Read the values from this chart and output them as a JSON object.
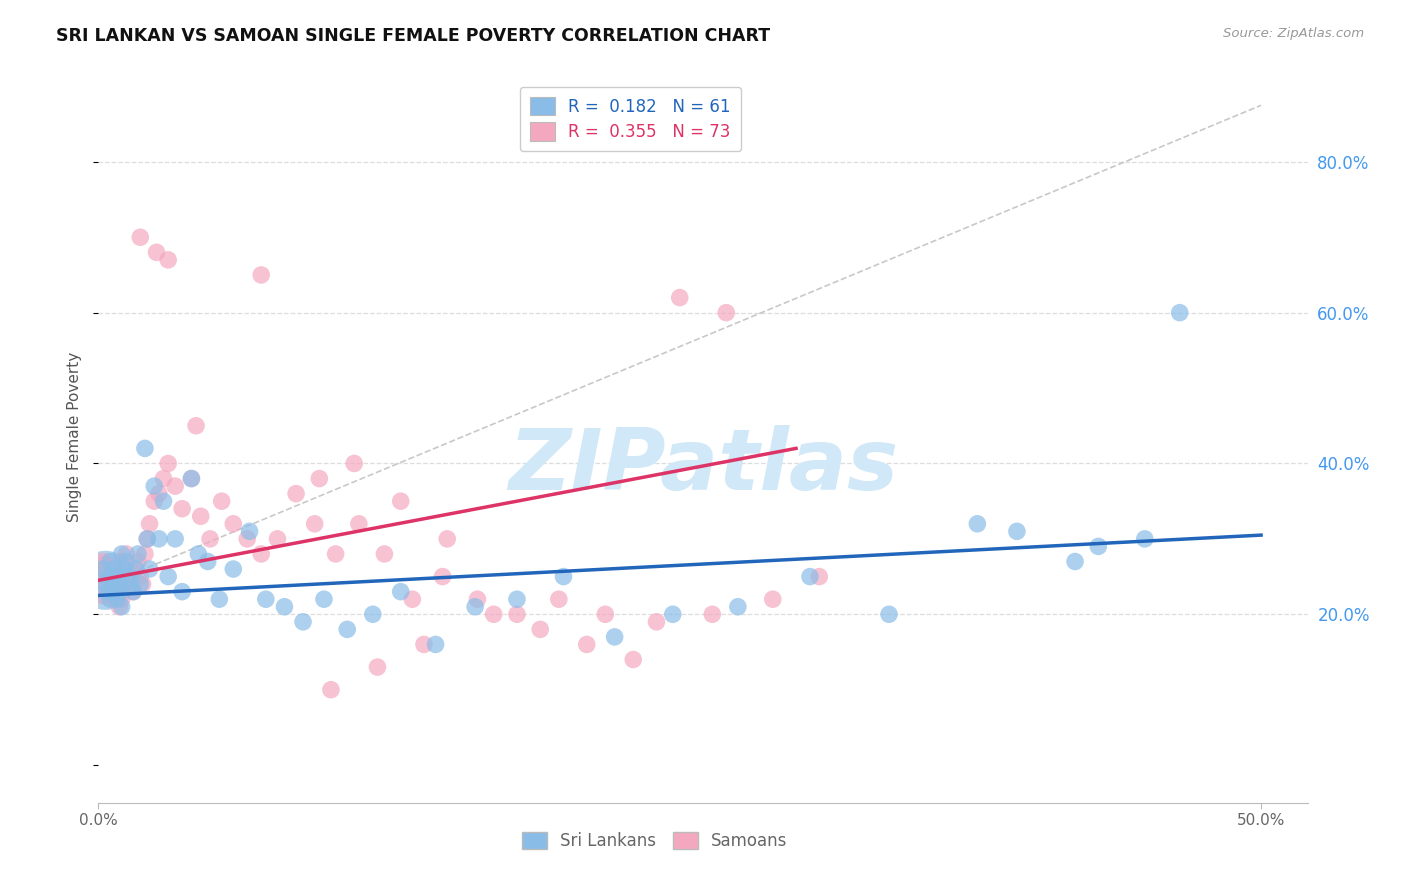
{
  "title": "SRI LANKAN VS SAMOAN SINGLE FEMALE POVERTY CORRELATION CHART",
  "source": "Source: ZipAtlas.com",
  "ylabel": "Single Female Poverty",
  "xlim": [
    0.0,
    0.52
  ],
  "ylim": [
    -0.05,
    0.92
  ],
  "xtick_vals": [
    0.0,
    0.5
  ],
  "xtick_labels": [
    "0.0%",
    "50.0%"
  ],
  "ytick_vals": [
    0.2,
    0.4,
    0.6,
    0.8
  ],
  "ytick_labels": [
    "20.0%",
    "40.0%",
    "60.0%",
    "80.0%"
  ],
  "sri_lankan_color": "#89bde8",
  "samoan_color": "#f4a8c0",
  "sri_lankan_line_color": "#2266bb",
  "samoan_line_color": "#dd3366",
  "dashed_line_color": "#cccccc",
  "grid_color": "#dddddd",
  "background_color": "#ffffff",
  "watermark_text": "ZIPatlas",
  "watermark_color": "#d0e8f8",
  "sri_lankans_label": "Sri Lankans",
  "samoans_label": "Samoans",
  "legend_r_blue": "R =  0.182",
  "legend_n_blue": "N = 61",
  "legend_r_pink": "R =  0.355",
  "legend_n_pink": "N = 73",
  "sri_lankan_trend_x": [
    0.0,
    0.5
  ],
  "sri_lankan_trend_y": [
    0.225,
    0.305
  ],
  "samoan_trend_x": [
    0.0,
    0.3
  ],
  "samoan_trend_y": [
    0.245,
    0.42
  ],
  "dashed_trend_x": [
    0.0,
    0.5
  ],
  "dashed_trend_y": [
    0.235,
    0.875
  ],
  "sri_lankan_x": [
    0.002,
    0.003,
    0.004,
    0.004,
    0.005,
    0.005,
    0.006,
    0.006,
    0.007,
    0.007,
    0.008,
    0.008,
    0.009,
    0.009,
    0.01,
    0.01,
    0.011,
    0.012,
    0.013,
    0.014,
    0.015,
    0.016,
    0.017,
    0.018,
    0.02,
    0.021,
    0.022,
    0.024,
    0.026,
    0.028,
    0.03,
    0.033,
    0.036,
    0.04,
    0.043,
    0.047,
    0.052,
    0.058,
    0.065,
    0.072,
    0.08,
    0.088,
    0.097,
    0.107,
    0.118,
    0.13,
    0.145,
    0.162,
    0.18,
    0.2,
    0.222,
    0.247,
    0.275,
    0.306,
    0.34,
    0.378,
    0.42,
    0.465,
    0.395,
    0.43,
    0.45
  ],
  "sri_lankan_y": [
    0.26,
    0.24,
    0.25,
    0.23,
    0.27,
    0.22,
    0.25,
    0.24,
    0.26,
    0.23,
    0.25,
    0.22,
    0.24,
    0.23,
    0.28,
    0.21,
    0.26,
    0.27,
    0.25,
    0.24,
    0.23,
    0.26,
    0.28,
    0.24,
    0.42,
    0.3,
    0.26,
    0.37,
    0.3,
    0.35,
    0.25,
    0.3,
    0.23,
    0.38,
    0.28,
    0.27,
    0.22,
    0.26,
    0.31,
    0.22,
    0.21,
    0.19,
    0.22,
    0.18,
    0.2,
    0.23,
    0.16,
    0.21,
    0.22,
    0.25,
    0.17,
    0.2,
    0.21,
    0.25,
    0.2,
    0.32,
    0.27,
    0.6,
    0.31,
    0.29,
    0.3
  ],
  "samoan_x": [
    0.002,
    0.003,
    0.004,
    0.005,
    0.005,
    0.006,
    0.007,
    0.007,
    0.008,
    0.008,
    0.009,
    0.009,
    0.01,
    0.01,
    0.011,
    0.012,
    0.013,
    0.014,
    0.015,
    0.016,
    0.017,
    0.018,
    0.019,
    0.02,
    0.021,
    0.022,
    0.024,
    0.026,
    0.028,
    0.03,
    0.033,
    0.036,
    0.04,
    0.044,
    0.048,
    0.053,
    0.058,
    0.064,
    0.07,
    0.077,
    0.085,
    0.093,
    0.102,
    0.112,
    0.123,
    0.135,
    0.148,
    0.163,
    0.18,
    0.198,
    0.218,
    0.24,
    0.264,
    0.042,
    0.095,
    0.11,
    0.13,
    0.15,
    0.17,
    0.19,
    0.21,
    0.23,
    0.25,
    0.27,
    0.29,
    0.31,
    0.018,
    0.025,
    0.03,
    0.07,
    0.1,
    0.12,
    0.14
  ],
  "samoan_y": [
    0.27,
    0.25,
    0.26,
    0.24,
    0.23,
    0.25,
    0.24,
    0.22,
    0.26,
    0.23,
    0.25,
    0.21,
    0.27,
    0.22,
    0.26,
    0.28,
    0.25,
    0.24,
    0.23,
    0.26,
    0.27,
    0.25,
    0.24,
    0.28,
    0.3,
    0.32,
    0.35,
    0.36,
    0.38,
    0.4,
    0.37,
    0.34,
    0.38,
    0.33,
    0.3,
    0.35,
    0.32,
    0.3,
    0.28,
    0.3,
    0.36,
    0.32,
    0.28,
    0.32,
    0.28,
    0.22,
    0.25,
    0.22,
    0.2,
    0.22,
    0.2,
    0.19,
    0.2,
    0.45,
    0.38,
    0.4,
    0.35,
    0.3,
    0.2,
    0.18,
    0.16,
    0.14,
    0.62,
    0.6,
    0.22,
    0.25,
    0.7,
    0.68,
    0.67,
    0.65,
    0.1,
    0.13,
    0.16
  ]
}
